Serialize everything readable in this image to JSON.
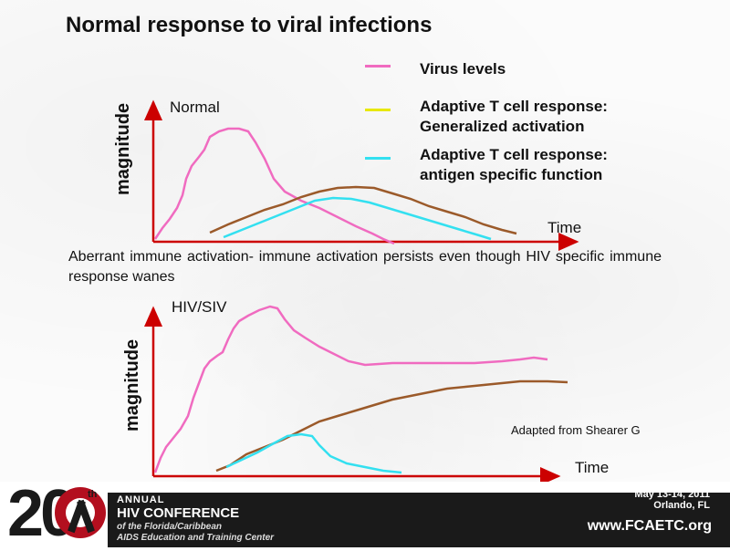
{
  "title": "Normal response to viral infections",
  "legend": [
    {
      "label_lines": [
        "Virus levels"
      ],
      "color": "#f06bc0"
    },
    {
      "label_lines": [
        "Adaptive T cell response:",
        "Generalized activation"
      ],
      "color": "#e8e800"
    },
    {
      "label_lines": [
        "Adaptive T cell response:",
        "antigen specific function"
      ],
      "color": "#33e0f0"
    }
  ],
  "top_panel": {
    "ylabel": "magnitude",
    "condition_label": "Normal",
    "xlabel": "Time"
  },
  "paragraph": "Aberrant immune activation- immune activation persists even though HIV specific immune response wanes",
  "bottom_panel": {
    "ylabel": "magnitude",
    "condition_label": "HIV/SIV",
    "xlabel": "Time"
  },
  "credit": "Adapted from Shearer G",
  "footer": {
    "number": "20",
    "ordinal": "th",
    "annual": "ANNUAL",
    "conference": "HIV CONFERENCE",
    "sub1": "of the Florida/Caribbean",
    "sub2": "AIDS Education and Training Center",
    "date": "May 13-14, 2011",
    "city": "Orlando, FL",
    "website": "www.FCAETC.org"
  },
  "colors": {
    "axis": "#cc0000",
    "virus": "#f06bc0",
    "generalized": "#9b5a2a",
    "specific": "#33e0f0"
  }
}
